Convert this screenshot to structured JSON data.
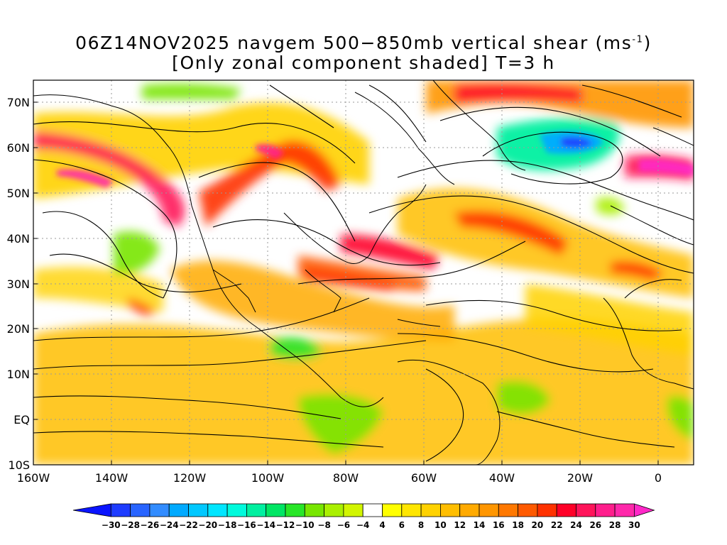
{
  "title": {
    "line1_prefix": "06Z14NOV2025 navgem 500−850mb vertical shear (ms",
    "line1_unit_exp": "-1",
    "line1_suffix": ")",
    "line2": "[Only zonal component shaded] T=3 h"
  },
  "map": {
    "region": "North Atlantic, North America and eastern Pacific",
    "lon_range": [
      -160,
      10
    ],
    "lat_range": [
      -10,
      75
    ],
    "lat_ticks": [
      "70N",
      "60N",
      "50N",
      "40N",
      "30N",
      "20N",
      "10N",
      "EQ",
      "10S"
    ],
    "lon_ticks": [
      "160W",
      "140W",
      "120W",
      "100W",
      "80W",
      "60W",
      "40W",
      "20W",
      "0"
    ],
    "overlay": "streamlines"
  },
  "colorbar": {
    "levels": [
      "-30",
      "-28",
      "-26",
      "-24",
      "-22",
      "-20",
      "-18",
      "-16",
      "-14",
      "-12",
      "-10",
      "-8",
      "-6",
      "-4",
      "4",
      "6",
      "8",
      "10",
      "12",
      "14",
      "16",
      "18",
      "20",
      "22",
      "24",
      "26",
      "28",
      "30"
    ],
    "colors": [
      "#0a14ff",
      "#1e3cff",
      "#2864ff",
      "#328cff",
      "#00aaff",
      "#00c8ff",
      "#00e6ff",
      "#00fadc",
      "#00f0a0",
      "#00e664",
      "#28e628",
      "#78e600",
      "#aaf000",
      "#d2f500",
      "#ffffff",
      "#ffff00",
      "#ffe600",
      "#ffd200",
      "#ffbe00",
      "#ffaa00",
      "#ff9600",
      "#ff7800",
      "#ff5a00",
      "#ff3200",
      "#ff0028",
      "#ff145a",
      "#ff1e8c",
      "#ff28aa",
      "#ff28c8"
    ]
  }
}
